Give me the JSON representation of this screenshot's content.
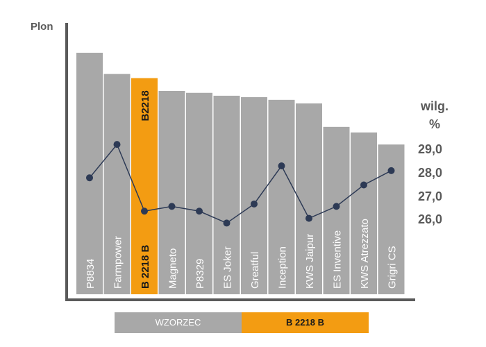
{
  "chart_data": {
    "type": "bar",
    "ylabel": "Plon",
    "y2label": [
      "wilg.",
      "%"
    ],
    "categories": [
      "P8834",
      "Farmpower",
      "B 2218 B",
      "Magneto",
      "P8329",
      "ES Joker",
      "Greatful",
      "Inception",
      "KWS Jaipur",
      "ES Inventive",
      "KWS Atrezzato",
      "Grigri CS"
    ],
    "bar_heights_relative": [
      100,
      91.2,
      89.5,
      84.2,
      83.4,
      82.2,
      81.6,
      80.5,
      79.0,
      69.3,
      67.0,
      62.0
    ],
    "highlight_index": 2,
    "highlight_label": "B2218",
    "series": [
      {
        "name": "wilg. %",
        "axis": "right",
        "values": [
          27.8,
          29.2,
          26.4,
          26.6,
          26.4,
          25.9,
          26.7,
          28.3,
          26.1,
          26.6,
          27.5,
          28.1
        ]
      }
    ],
    "y2ticks": [
      "29,0",
      "28,0",
      "27,0",
      "26,0"
    ],
    "y2_values": [
      29,
      28,
      27,
      26
    ],
    "colors": {
      "bar": "#a8a8a8",
      "highlight": "#f39c12",
      "line": "#2d3a55",
      "axis": "#5a5a5a"
    },
    "legend": [
      {
        "label": "WZORZEC",
        "color": "#a8a8a8"
      },
      {
        "label": "B 2218 B",
        "color": "#f39c12"
      }
    ]
  }
}
